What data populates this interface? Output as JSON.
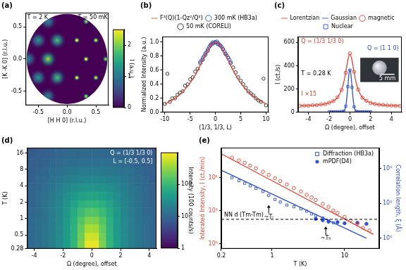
{
  "chart_data": [
    {
      "type": "map",
      "title": "(a)",
      "xlabel": "[H H 0] (r.l.u.)",
      "ylabel": "[K -K 0] (r.l.u.)",
      "xlim": [
        -0.72,
        0.72
      ],
      "ylim": [
        -0.72,
        0.72
      ],
      "xticks": [
        -0.5,
        {
          "value": 0,
          "label": "0.0"
        },
        0.5
      ],
      "yticks": [
        -0.5,
        {
          "value": 0,
          "label": "0.0"
        },
        0.5
      ],
      "map_radius": 0.7,
      "annotations": [
        {
          "text": "T = 2 K",
          "color": "#000000"
        },
        {
          "text": "T = 50 mK",
          "color": "#000000"
        }
      ],
      "series": [
        {
          "marker": "blob",
          "x": [
            -0.33,
            -0.17,
            -0.17,
            -0.5,
            -0.5,
            -0.67,
            -0.33,
            -0.33
          ],
          "y": [
            0,
            0.29,
            -0.29,
            0.29,
            -0.29,
            0,
            0.58,
            -0.58
          ],
          "intensity": [
            2.2,
            1.8,
            1.8,
            1.4,
            1.4,
            1.2,
            1.2,
            1.2
          ]
        },
        {
          "marker": "dot",
          "x": [
            0.33,
            0.17,
            0.17,
            0.5,
            0.5,
            0.67,
            0.33,
            0.33
          ],
          "y": [
            0,
            0.29,
            -0.29,
            0.29,
            -0.29,
            0,
            0.58,
            -0.58
          ],
          "intensity": [
            2.5,
            2.4,
            2.4,
            2.2,
            2.2,
            2.0,
            2.0,
            2.0
          ]
        }
      ],
      "colorbar": {
        "label": "I (a.u.)",
        "lim": [
          0,
          2.5
        ],
        "ticks": [
          0,
          1,
          2
        ]
      }
    },
    {
      "type": "scatter",
      "title": "(b)",
      "xlabel": "(1/3, 1/3, L)",
      "ylabel": "Normalized Intensity (a.u.)",
      "xlim": [
        -10.5,
        10.5
      ],
      "ylim": [
        0,
        1.08
      ],
      "xticks": [
        -10,
        -5,
        0,
        5,
        10
      ],
      "yticks": [
        {
          "value": 0,
          "label": "0.0"
        },
        0.2,
        0.4,
        0.6,
        0.8,
        {
          "value": 1,
          "label": "1.0"
        }
      ],
      "legend": "top",
      "series": [
        {
          "name": "300 mK (HB3a)",
          "color": "#2f4fd0",
          "marker": "circle_open",
          "line_style": "none",
          "x": [
            -3,
            -2.75,
            -2.5,
            -2.25,
            -2,
            -1.75,
            -1.5,
            -1.25,
            -1,
            -0.75,
            -0.5,
            -0.25,
            0,
            0.25,
            0.5,
            0.75,
            1,
            1.25,
            1.5,
            1.75,
            2,
            2.25,
            2.5,
            2.75,
            3
          ],
          "values": [
            0.72,
            0.74,
            0.78,
            0.8,
            0.84,
            0.86,
            0.9,
            0.93,
            0.96,
            0.98,
            1.0,
            0.99,
            1.0,
            1.01,
            0.99,
            0.97,
            0.95,
            0.93,
            0.9,
            0.87,
            0.84,
            0.81,
            0.78,
            0.75,
            0.72
          ]
        },
        {
          "name": "50 mK (CORELI)",
          "color": "#222222",
          "marker": "circle_open",
          "line_style": "none",
          "x": [
            -10,
            -9.5,
            -9,
            -8.5,
            -8,
            -7.5,
            -7,
            -6.5,
            -6,
            -5.5,
            -5,
            -4.5,
            -4,
            -3.5,
            -3,
            -2.5,
            -2,
            -1.5,
            -1,
            -0.5,
            0,
            0.5,
            1,
            1.5,
            2,
            2.5,
            3,
            3.5,
            4,
            4.5,
            5,
            5.5,
            6,
            6.5,
            7,
            7.5,
            8,
            8.5,
            9,
            9.5,
            10
          ],
          "values": [
            0.12,
            0.55,
            0.15,
            0.2,
            0.2,
            0.25,
            0.28,
            0.3,
            0.38,
            0.4,
            0.47,
            0.5,
            0.58,
            0.62,
            0.7,
            0.75,
            0.82,
            0.88,
            0.95,
            0.98,
            1.0,
            0.97,
            0.95,
            0.9,
            0.83,
            0.78,
            0.7,
            0.64,
            0.57,
            0.5,
            0.45,
            0.4,
            0.35,
            0.3,
            0.27,
            0.24,
            0.2,
            0.17,
            0.15,
            0.48,
            0.1
          ]
        },
        {
          "name": "F²(Q)(1-Qz²/Q²)",
          "color": "#e8402e",
          "marker": "none",
          "line_style": "solid",
          "x": [
            -10,
            -9,
            -8,
            -7,
            -6,
            -5,
            -4,
            -3,
            -2,
            -1,
            0,
            1,
            2,
            3,
            4,
            5,
            6,
            7,
            8,
            9,
            10
          ],
          "values": [
            0.12,
            0.16,
            0.2,
            0.26,
            0.33,
            0.42,
            0.53,
            0.67,
            0.82,
            0.95,
            1.0,
            0.95,
            0.82,
            0.67,
            0.53,
            0.42,
            0.33,
            0.26,
            0.2,
            0.16,
            0.12
          ]
        }
      ]
    },
    {
      "type": "scatter",
      "title": "(c)",
      "xlabel": "Ω (degree), offset",
      "ylabel": "I (ct./s)",
      "xlim": [
        -5,
        5
      ],
      "ylim": [
        0,
        650
      ],
      "xticks": [
        -4,
        -2,
        0,
        2,
        4
      ],
      "yticks": [
        0,
        200,
        400,
        600
      ],
      "legend": "top",
      "annotations": [
        {
          "text": "Q = (1/3 1/3 0)",
          "color": "#e8402e"
        },
        {
          "text": "Q = (1 1 0)",
          "color": "#2f4fd0"
        },
        {
          "text": "T = 0.28 K",
          "color": "#000000"
        },
        {
          "text": "I ×15",
          "color": "#e8402e"
        },
        {
          "text": "5 mm",
          "color": "#ffffff"
        }
      ],
      "series": [
        {
          "name": "magnetic",
          "color": "#e8402e",
          "marker": "circle_open",
          "line_style": "none",
          "x": [
            -4.8,
            -4.4,
            -4,
            -3.6,
            -3.2,
            -2.8,
            -2.4,
            -2,
            -1.6,
            -1.2,
            -0.8,
            -0.4,
            0,
            0.4,
            0.8,
            1.2,
            1.6,
            2,
            2.4,
            2.8,
            3.2,
            3.6,
            4,
            4.4,
            4.8
          ],
          "values": [
            56,
            58,
            57,
            61,
            62,
            68,
            71,
            83,
            97,
            130,
            192,
            340,
            505,
            348,
            196,
            126,
            99,
            80,
            73,
            66,
            64,
            59,
            58,
            56,
            55
          ]
        },
        {
          "name": "Nuclear",
          "color": "#2f4fd0",
          "marker": "square_open",
          "line_style": "none",
          "x": [
            -2,
            -1.8,
            -1.6,
            -1.4,
            -1.2,
            -1,
            -0.8,
            -0.6,
            -0.4,
            -0.2,
            0,
            0.2,
            0.4,
            0.6,
            0.8,
            1,
            1.2,
            1.4,
            1.6,
            1.8,
            2
          ],
          "values": [
            5,
            6,
            4,
            5,
            6,
            5,
            7,
            10,
            52,
            220,
            362,
            215,
            48,
            9,
            6,
            5,
            4,
            6,
            5,
            5,
            4
          ]
        },
        {
          "name": "Lorentzian",
          "color": "#e8402e",
          "marker": "none",
          "line_style": "solid",
          "x": [
            -4.8,
            -4,
            -3.2,
            -2.4,
            -1.6,
            -1.2,
            -0.8,
            -0.6,
            -0.4,
            -0.2,
            0,
            0.2,
            0.4,
            0.6,
            0.8,
            1.2,
            1.6,
            2.4,
            3.2,
            4,
            4.8
          ],
          "values": [
            56,
            58,
            63,
            72,
            98,
            128,
            194,
            255,
            344,
            448,
            500,
            448,
            344,
            255,
            194,
            128,
            98,
            72,
            63,
            58,
            56
          ]
        },
        {
          "name": "Gaussian",
          "color": "#2f4fd0",
          "marker": "none",
          "line_style": "solid",
          "x": [
            -2,
            -1,
            -0.6,
            -0.5,
            -0.4,
            -0.3,
            -0.2,
            -0.1,
            0,
            0.1,
            0.2,
            0.3,
            0.4,
            0.5,
            0.6,
            1,
            2
          ],
          "values": [
            5,
            5,
            9,
            21,
            54,
            122,
            223,
            323,
            365,
            323,
            223,
            122,
            54,
            21,
            9,
            5,
            5
          ]
        }
      ]
    },
    {
      "type": "heatmap",
      "title": "(d)",
      "xlabel": "Ω (degree), offset",
      "ylabel": "T (K)",
      "log": "y",
      "xlim": [
        -4.5,
        4.5
      ],
      "ylim": [
        0.28,
        20
      ],
      "xticks": [
        -4,
        -2,
        0,
        2,
        4
      ],
      "yticks": [
        0.28,
        0.5,
        1,
        2,
        4,
        8,
        16
      ],
      "annotations": [
        {
          "text": "Q = (1/3 1/3 0)",
          "color": "#ffffff"
        },
        {
          "text": "L = [-0.5, 0.5]",
          "color": "#ffffff"
        }
      ],
      "x_edges": [
        -4.5,
        -4,
        -3.5,
        -3,
        -2.5,
        -2,
        -1.5,
        -1,
        -0.5,
        0,
        0.5,
        1,
        1.5,
        2,
        2.5,
        3,
        3.5,
        4,
        4.5
      ],
      "y_edges": [
        0.28,
        0.4,
        0.56,
        0.8,
        1.1,
        1.6,
        2.2,
        3.2,
        4.5,
        6.3,
        9,
        12.7,
        20
      ],
      "cells": [
        [
          10,
          12,
          15,
          20,
          28,
          45,
          90,
          250,
          800,
          800,
          250,
          90,
          45,
          28,
          20,
          15,
          12,
          10
        ],
        [
          10,
          12,
          15,
          20,
          28,
          44,
          85,
          220,
          600,
          600,
          220,
          85,
          44,
          28,
          20,
          15,
          12,
          10
        ],
        [
          10,
          12,
          15,
          19,
          27,
          42,
          80,
          190,
          400,
          400,
          190,
          80,
          42,
          27,
          19,
          15,
          12,
          10
        ],
        [
          10,
          12,
          14,
          19,
          26,
          40,
          75,
          150,
          250,
          250,
          150,
          75,
          40,
          26,
          19,
          14,
          12,
          10
        ],
        [
          10,
          11,
          14,
          18,
          25,
          38,
          65,
          110,
          150,
          150,
          110,
          65,
          38,
          25,
          18,
          14,
          11,
          10
        ],
        [
          9,
          11,
          14,
          18,
          24,
          34,
          52,
          75,
          90,
          90,
          75,
          52,
          34,
          24,
          18,
          14,
          11,
          9
        ],
        [
          9,
          11,
          13,
          17,
          22,
          30,
          40,
          50,
          55,
          55,
          50,
          40,
          30,
          22,
          17,
          13,
          11,
          9
        ],
        [
          9,
          10,
          12,
          15,
          19,
          24,
          29,
          33,
          35,
          35,
          33,
          29,
          24,
          19,
          15,
          12,
          10,
          9
        ],
        [
          8,
          10,
          11,
          13,
          16,
          19,
          21,
          23,
          24,
          24,
          23,
          21,
          19,
          16,
          13,
          11,
          10,
          8
        ],
        [
          8,
          9,
          10,
          12,
          13,
          15,
          16,
          17,
          17,
          17,
          17,
          16,
          15,
          13,
          12,
          10,
          9,
          8
        ],
        [
          8,
          8,
          9,
          10,
          11,
          12,
          12,
          13,
          13,
          13,
          13,
          12,
          12,
          11,
          10,
          9,
          8,
          8
        ],
        [
          7,
          8,
          8,
          9,
          9,
          10,
          10,
          10,
          10,
          10,
          10,
          10,
          10,
          9,
          9,
          8,
          8,
          7
        ]
      ],
      "colorbar": {
        "label": "Intensity (100 counts/s)",
        "lim": [
          1,
          1000
        ],
        "ticks": [
          1,
          10,
          100
        ],
        "log": true
      }
    },
    {
      "type": "scatter",
      "title": "(e)",
      "xlabel": "T (K)",
      "ylabel": "Interated Intensity, I (ct./min)",
      "y2label": "Correlation length, ξ (Å)",
      "log": true,
      "xlim": [
        0.2,
        30
      ],
      "ylim": [
        0.7,
        800
      ],
      "y2lim": [
        0.5,
        400
      ],
      "xticks": [
        0.2,
        1,
        10
      ],
      "yticks": [
        {
          "value": 1,
          "label": "10⁰"
        },
        {
          "value": 10,
          "label": "10¹"
        },
        {
          "value": 100,
          "label": "10²"
        }
      ],
      "y2ticks": [
        {
          "value": 1,
          "label": "10⁰"
        },
        {
          "value": 10,
          "label": "10¹"
        },
        {
          "value": 100,
          "label": "10²"
        }
      ],
      "legend": "upper right",
      "annotations": [
        {
          "text": "~Tₗ",
          "x": 0.9,
          "y": 9,
          "axis": "y2"
        },
        {
          "text": "~Tₕ",
          "x": 5.5,
          "y": 2.2,
          "axis": "y2"
        },
        {
          "text": "NN d (Tm-Tm)",
          "y": 3.5,
          "axis": "y2",
          "line_style": "dashed"
        }
      ],
      "series": [
        {
          "color": "#e8402e",
          "marker": "circle_open",
          "line_style": "none",
          "x": [
            0.28,
            0.35,
            0.42,
            0.5,
            0.6,
            0.75,
            0.9,
            1.1,
            1.3,
            1.6,
            2,
            2.5,
            3,
            3.5,
            4,
            5,
            6,
            7,
            8,
            10,
            12,
            15,
            18,
            22
          ],
          "values": [
            400,
            330,
            280,
            230,
            190,
            150,
            120,
            95,
            78,
            62,
            48,
            38,
            30,
            25,
            21,
            16,
            13,
            10,
            8.5,
            6.5,
            5,
            4,
            3,
            2.5
          ]
        },
        {
          "color": "#e8402e",
          "marker": "none",
          "line_style": "solid",
          "x": [
            0.2,
            25
          ],
          "values": [
            520,
            1.9
          ]
        },
        {
          "name": "Diffraction (HB3a)",
          "color": "#2f4fd0",
          "marker": "square_open",
          "line_style": "none",
          "axis": "y2",
          "x": [
            0.28,
            0.35,
            0.42,
            0.5,
            0.6,
            0.75,
            0.9,
            1.1,
            1.3,
            1.6,
            2,
            2.5,
            3,
            3.5,
            4,
            5,
            6,
            7
          ],
          "values": [
            55,
            45,
            38,
            32,
            27,
            22,
            17,
            13,
            11,
            9,
            8,
            7,
            6,
            5,
            4.5,
            3.8,
            3.2,
            2.8
          ]
        },
        {
          "color": "#2f4fd0",
          "marker": "none",
          "line_style": "solid",
          "axis": "y2",
          "x": [
            0.2,
            20
          ],
          "values": [
            90,
            1.0
          ]
        },
        {
          "name": "mPDF(D4)",
          "color": "#2f4fd0",
          "marker": "circle",
          "line_style": "none",
          "axis": "y2",
          "x": [
            4,
            5,
            6,
            8,
            10,
            15,
            20
          ],
          "values": [
            3.6,
            3.3,
            3.0,
            2.9,
            2.7,
            2.8,
            2.6
          ]
        }
      ]
    }
  ]
}
